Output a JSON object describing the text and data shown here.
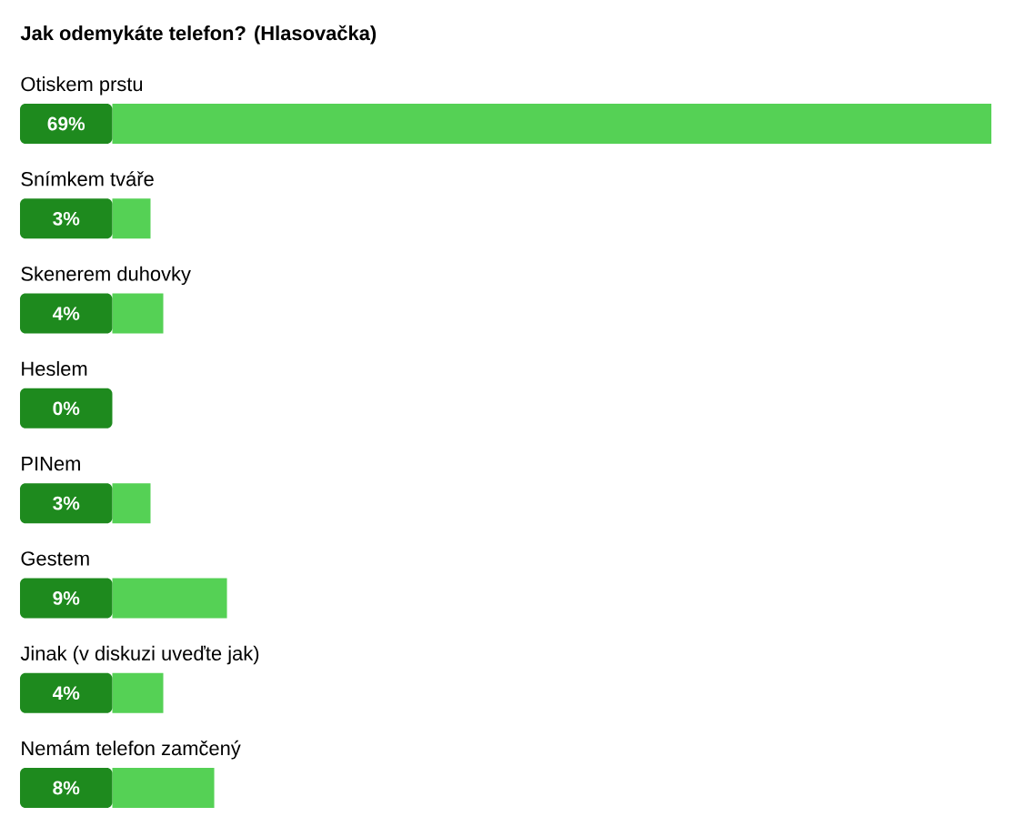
{
  "chart_data": {
    "type": "bar",
    "orientation": "horizontal",
    "title": "Jak odemykáte telefon? (Hlasovačka)",
    "categories": [
      "Otiskem prstu",
      "Snímkem tváře",
      "Skenerem duhovky",
      "Heslem",
      "PINem",
      "Gestem",
      "Jinak (v diskuzi uveďte jak)",
      "Nemám telefon zamčený"
    ],
    "values": [
      69,
      3,
      4,
      0,
      3,
      9,
      4,
      8
    ],
    "value_labels": [
      "69%",
      "3%",
      "4%",
      "0%",
      "3%",
      "9%",
      "4%",
      "8%"
    ],
    "color": "#55d155"
  }
}
